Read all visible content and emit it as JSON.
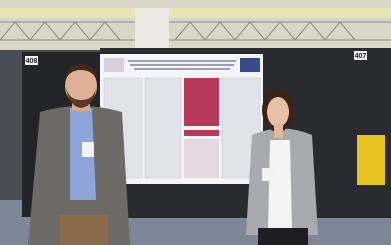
{
  "scene": {
    "board_numbers": [
      "408",
      "407"
    ]
  }
}
